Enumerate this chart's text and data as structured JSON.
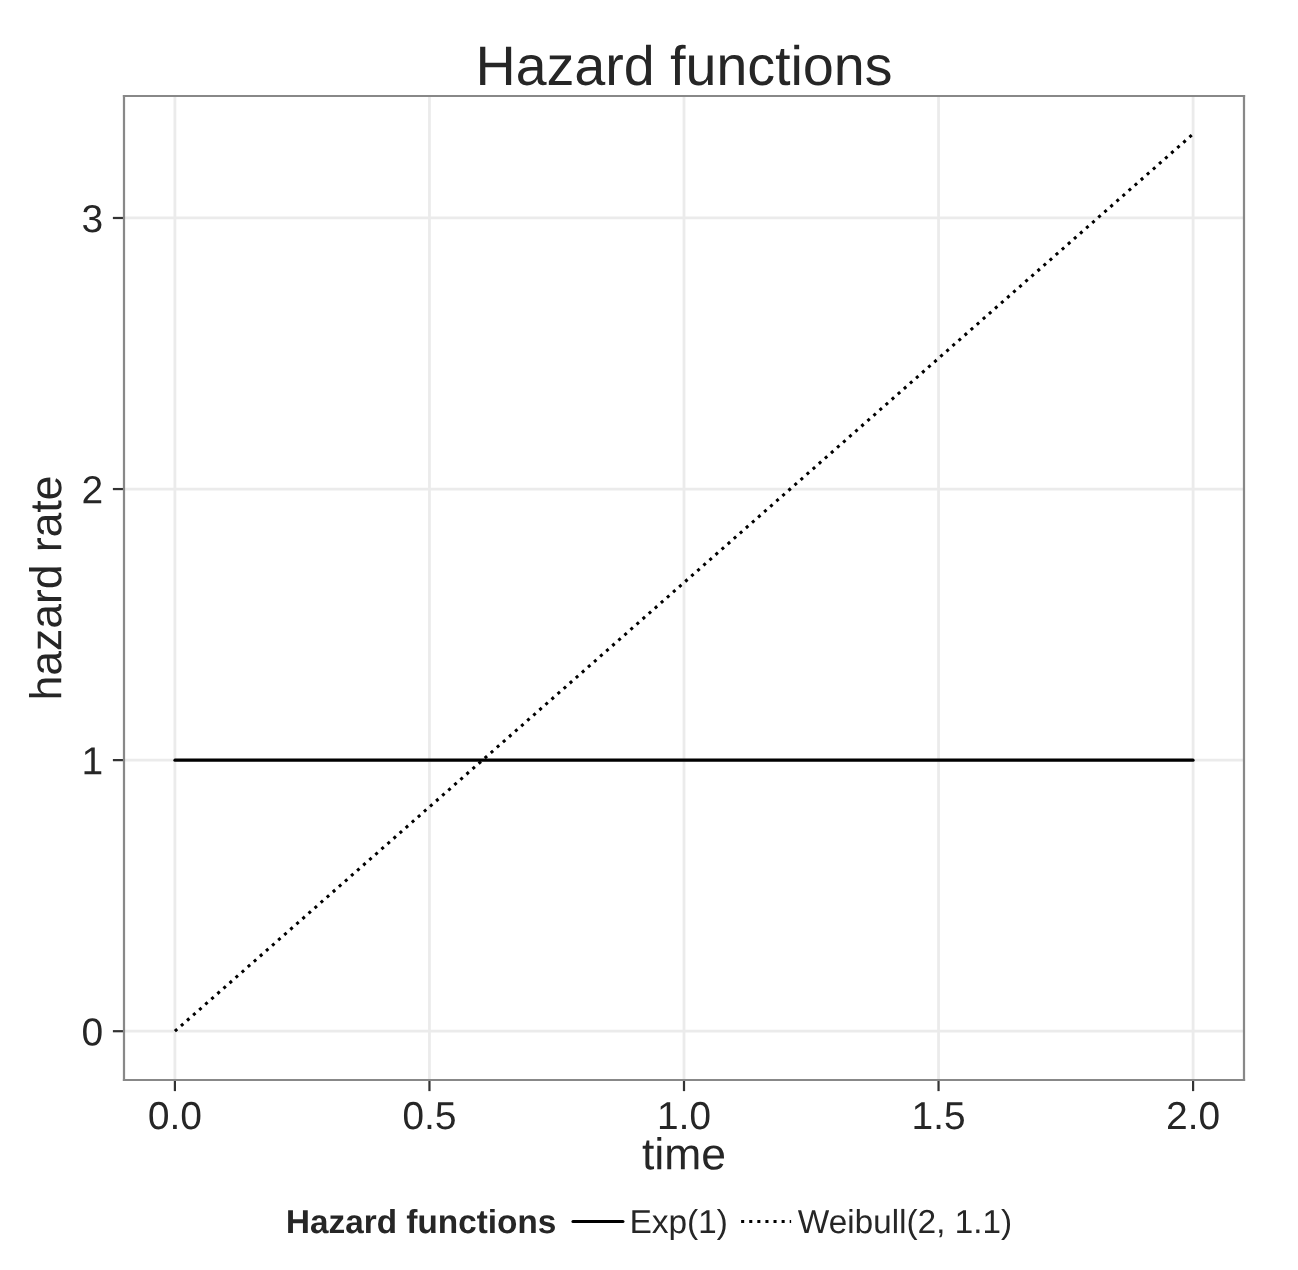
{
  "chart_data": {
    "type": "line",
    "title": "Hazard functions",
    "xlabel": "time",
    "ylabel": "hazard rate",
    "legend_title": "Hazard functions",
    "x": [
      0,
      2
    ],
    "series": [
      {
        "name": "Exp(1)",
        "color": "#000000",
        "line_style": "solid",
        "values": [
          1,
          1
        ]
      },
      {
        "name": "Weibull(2, 1.1)",
        "color": "#000000",
        "line_style": "dotted",
        "values": [
          0,
          3.31
        ]
      }
    ],
    "xlim": [
      -0.1,
      2.1
    ],
    "xticks": [
      {
        "value": 0,
        "label": "0.0"
      },
      0.5,
      {
        "value": 1,
        "label": "1.0"
      },
      1.5,
      {
        "value": 2,
        "label": "2.0"
      }
    ],
    "ylim": [
      -0.18,
      3.45
    ],
    "yticks": [
      0,
      1,
      2,
      3
    ],
    "grid": true,
    "legend": "bottom",
    "marker": "none"
  }
}
